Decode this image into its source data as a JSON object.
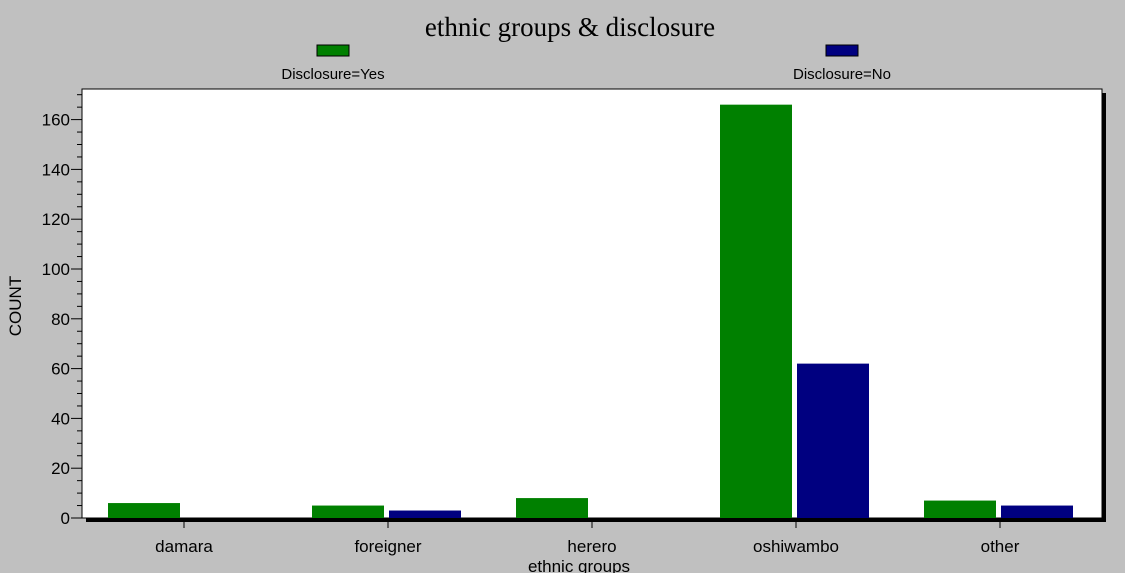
{
  "chart_data": {
    "type": "bar",
    "title": "ethnic groups & disclosure",
    "xlabel": "ethnic groups",
    "ylabel": "COUNT",
    "categories": [
      "damara",
      "foreigner",
      "herero",
      "oshiwambo",
      "other"
    ],
    "series": [
      {
        "name": "Disclosure=Yes",
        "color": "#008000",
        "values": [
          6,
          5,
          8,
          166,
          7
        ]
      },
      {
        "name": "Disclosure=No",
        "color": "#000080",
        "values": [
          0,
          3,
          0,
          62,
          5
        ]
      }
    ],
    "ylim": [
      0,
      170
    ],
    "yticks": [
      0,
      20,
      40,
      60,
      80,
      100,
      120,
      140,
      160
    ],
    "grid": false,
    "legend_position": "top",
    "background": "#c0c0c0",
    "plot_background": "#ffffff"
  }
}
